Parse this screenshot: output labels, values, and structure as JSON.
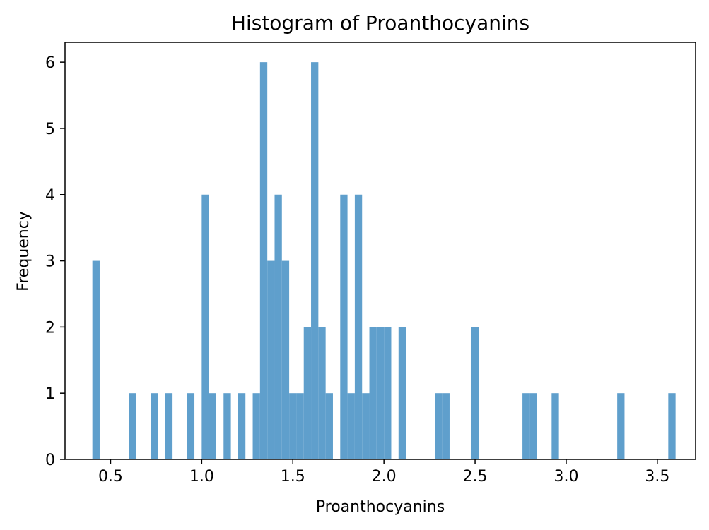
{
  "chart_data": {
    "type": "bar",
    "title": "Histogram of Proanthocyanins",
    "xlabel": "Proanthocyanins",
    "ylabel": "Frequency",
    "xlim": [
      0.25,
      3.71
    ],
    "ylim": [
      0,
      6.3
    ],
    "xticks": [
      "0.5",
      "1.0",
      "1.5",
      "2.0",
      "2.5",
      "3.0",
      "3.5"
    ],
    "yticks": [
      "0",
      "1",
      "2",
      "3",
      "4",
      "5",
      "6"
    ],
    "grid": false,
    "bar_color": "#5f9fcc",
    "bins": [
      {
        "x0": 0.4,
        "x1": 0.44,
        "count": 3
      },
      {
        "x0": 0.6,
        "x1": 0.64,
        "count": 1
      },
      {
        "x0": 0.72,
        "x1": 0.76,
        "count": 1
      },
      {
        "x0": 0.8,
        "x1": 0.84,
        "count": 1
      },
      {
        "x0": 0.92,
        "x1": 0.96,
        "count": 1
      },
      {
        "x0": 1.0,
        "x1": 1.04,
        "count": 4
      },
      {
        "x0": 1.04,
        "x1": 1.08,
        "count": 1
      },
      {
        "x0": 1.12,
        "x1": 1.16,
        "count": 1
      },
      {
        "x0": 1.2,
        "x1": 1.24,
        "count": 1
      },
      {
        "x0": 1.28,
        "x1": 1.32,
        "count": 1
      },
      {
        "x0": 1.32,
        "x1": 1.36,
        "count": 6
      },
      {
        "x0": 1.36,
        "x1": 1.4,
        "count": 3
      },
      {
        "x0": 1.4,
        "x1": 1.44,
        "count": 4
      },
      {
        "x0": 1.44,
        "x1": 1.48,
        "count": 3
      },
      {
        "x0": 1.48,
        "x1": 1.52,
        "count": 1
      },
      {
        "x0": 1.52,
        "x1": 1.56,
        "count": 1
      },
      {
        "x0": 1.56,
        "x1": 1.6,
        "count": 2
      },
      {
        "x0": 1.6,
        "x1": 1.64,
        "count": 6
      },
      {
        "x0": 1.64,
        "x1": 1.68,
        "count": 2
      },
      {
        "x0": 1.68,
        "x1": 1.72,
        "count": 1
      },
      {
        "x0": 1.76,
        "x1": 1.8,
        "count": 4
      },
      {
        "x0": 1.8,
        "x1": 1.84,
        "count": 1
      },
      {
        "x0": 1.84,
        "x1": 1.88,
        "count": 4
      },
      {
        "x0": 1.88,
        "x1": 1.92,
        "count": 1
      },
      {
        "x0": 1.92,
        "x1": 1.96,
        "count": 2
      },
      {
        "x0": 1.96,
        "x1": 2.0,
        "count": 2
      },
      {
        "x0": 2.0,
        "x1": 2.04,
        "count": 2
      },
      {
        "x0": 2.08,
        "x1": 2.12,
        "count": 2
      },
      {
        "x0": 2.28,
        "x1": 2.32,
        "count": 1
      },
      {
        "x0": 2.32,
        "x1": 2.36,
        "count": 1
      },
      {
        "x0": 2.48,
        "x1": 2.52,
        "count": 2
      },
      {
        "x0": 2.76,
        "x1": 2.8,
        "count": 1
      },
      {
        "x0": 2.8,
        "x1": 2.84,
        "count": 1
      },
      {
        "x0": 2.92,
        "x1": 2.96,
        "count": 1
      },
      {
        "x0": 3.28,
        "x1": 3.32,
        "count": 1
      },
      {
        "x0": 3.56,
        "x1": 3.6,
        "count": 1
      }
    ]
  }
}
